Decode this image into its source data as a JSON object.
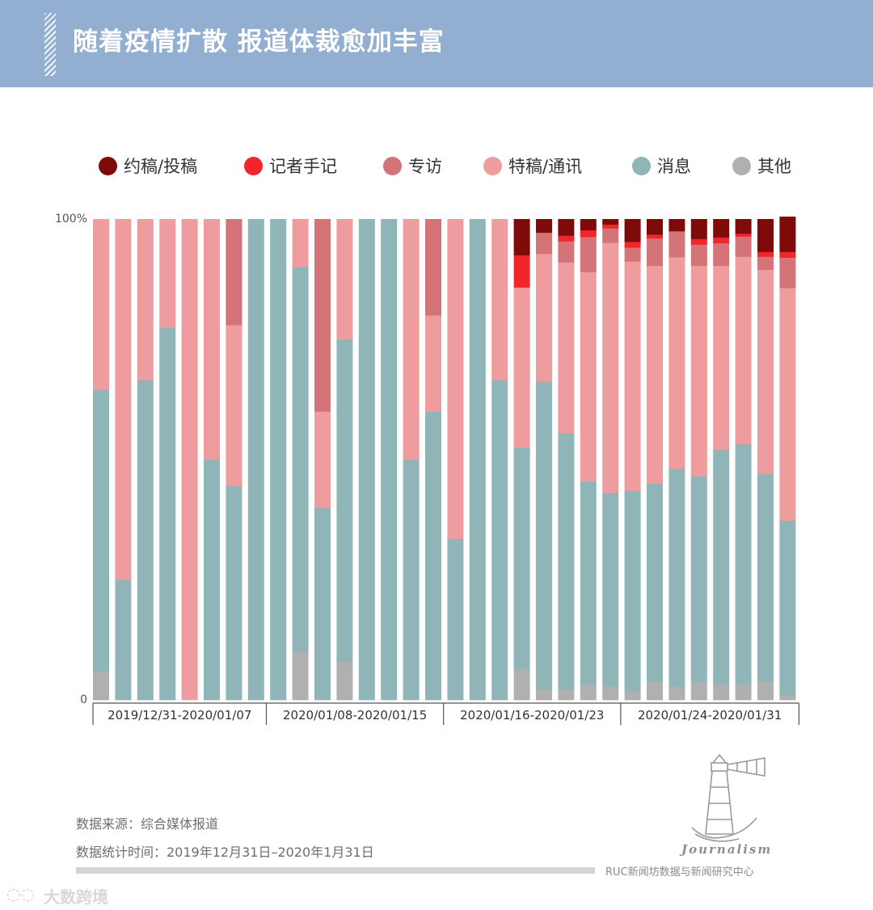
{
  "header": {
    "title": "随着疫情扩散 报道体裁愈加丰富"
  },
  "colors": {
    "header_bg": "#92aed0",
    "约稿/投稿": "#7e0a0a",
    "记者手记": "#f1262b",
    "专访": "#d47378",
    "特稿/通讯": "#ef9c9e",
    "消息": "#8fb5b8",
    "其他": "#b0b0b0"
  },
  "legend": [
    {
      "label": "约稿/投稿",
      "color": "#7e0a0a"
    },
    {
      "label": "记者手记",
      "color": "#f1262b"
    },
    {
      "label": "专访",
      "color": "#d47378"
    },
    {
      "label": "特稿/通讯",
      "color": "#ef9c9e"
    },
    {
      "label": "消息",
      "color": "#8fb5b8"
    },
    {
      "label": "其他",
      "color": "#b0b0b0"
    }
  ],
  "chart_data": {
    "type": "bar",
    "stacked": true,
    "normalized": true,
    "title": "随着疫情扩散 报道体裁愈加丰富",
    "y_tick_labels": [
      "100%",
      "0"
    ],
    "ylim": [
      0,
      100
    ],
    "group_labels": [
      "2019/12/31-2020/01/07",
      "2020/01/08-2020/01/15",
      "2020/01/16-2020/01/23",
      "2020/01/24-2020/01/31"
    ],
    "group_sizes": [
      8,
      8,
      8,
      8
    ],
    "series": [
      {
        "name": "其他",
        "values": [
          6,
          0,
          0,
          0,
          0,
          0,
          0,
          0,
          0,
          10,
          0,
          8,
          0,
          0,
          0,
          0,
          0,
          0,
          0,
          6.5,
          2.2,
          2.2,
          3.2,
          2.8,
          1.8,
          3.8,
          2.8,
          3.8,
          3.2,
          3.2,
          3.8,
          1
        ]
      },
      {
        "name": "消息",
        "values": [
          58.5,
          25,
          66.5,
          77.5,
          0,
          50,
          44.5,
          100,
          100,
          80,
          40,
          67,
          100,
          100,
          50,
          60,
          33.5,
          100,
          66.5,
          46,
          64,
          53.3,
          42.3,
          40.3,
          41.7,
          41.2,
          45.3,
          42.7,
          48.8,
          50,
          43.2,
          36.3
        ]
      },
      {
        "name": "特稿/通讯",
        "values": [
          35.5,
          75,
          33.5,
          22.5,
          100,
          50,
          33.5,
          0,
          0,
          10,
          20,
          25,
          0,
          0,
          50,
          20,
          66.5,
          0,
          33.5,
          33.3,
          26.6,
          35.5,
          43.5,
          52,
          47.7,
          45.3,
          44,
          43.8,
          38.3,
          39,
          42.5,
          48.4
        ]
      },
      {
        "name": "专访",
        "values": [
          0,
          0,
          0,
          0,
          0,
          0,
          22,
          0,
          0,
          0,
          40,
          0,
          0,
          0,
          0,
          20,
          0,
          0,
          0,
          0,
          4.4,
          4.4,
          7.3,
          3,
          2.9,
          5.7,
          5.4,
          4.4,
          4.7,
          4.2,
          2.7,
          6.3
        ]
      },
      {
        "name": "记者手记",
        "values": [
          0,
          0,
          0,
          0,
          0,
          0,
          0,
          0,
          0,
          0,
          0,
          0,
          0,
          0,
          0,
          0,
          0,
          0,
          0,
          6.7,
          0,
          1.2,
          1.4,
          0.8,
          1.2,
          0.8,
          0,
          1.2,
          1.2,
          0.6,
          1,
          1.2
        ]
      },
      {
        "name": "约稿/投稿",
        "values": [
          0,
          0,
          0,
          0,
          0,
          0,
          0,
          0,
          0,
          0,
          0,
          0,
          0,
          0,
          0,
          0,
          0,
          0,
          0,
          7.5,
          2.8,
          3.4,
          2.3,
          1.1,
          4.7,
          3.2,
          2.5,
          4.1,
          3.8,
          3,
          6.8,
          7.3
        ]
      }
    ]
  },
  "notes": {
    "source": "数据来源：综合媒体报道",
    "period": "数据统计时间：2019年12月31日–2020年1月31日"
  },
  "org": {
    "brand": "Journalism",
    "name": "RUC新闻坊数据与新闻研究中心"
  },
  "watermark": {
    "text": "大数跨境"
  }
}
